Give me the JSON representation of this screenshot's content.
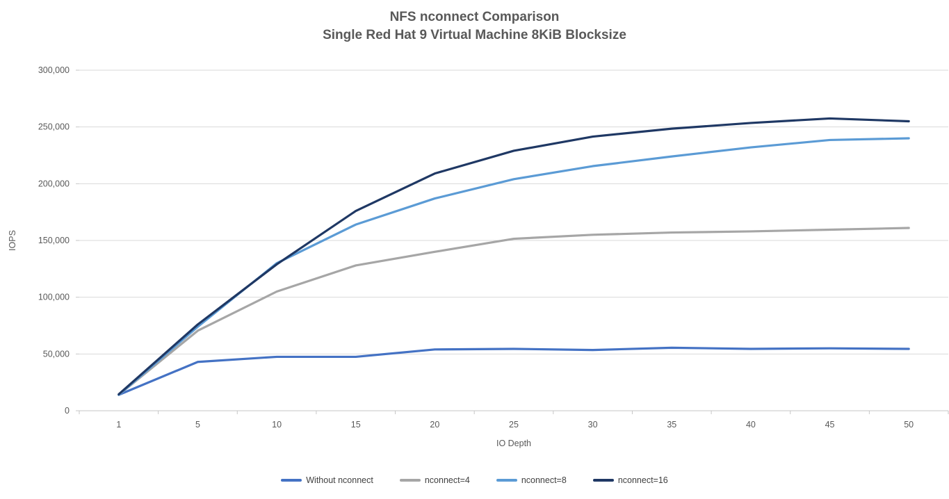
{
  "title": {
    "line1": "NFS nconnect Comparison",
    "line2": "Single Red Hat 9 Virtual Machine 8KiB Blocksize"
  },
  "chart_data": {
    "type": "line",
    "title": "NFS nconnect Comparison — Single Red Hat 9 Virtual Machine 8KiB Blocksize",
    "xlabel": "IO Depth",
    "ylabel": "IOPS",
    "x_is_categorical": true,
    "categories": [
      1,
      5,
      10,
      15,
      20,
      25,
      30,
      35,
      40,
      45,
      50
    ],
    "ylim": [
      0,
      300000
    ],
    "ytick_interval": 50000,
    "yticks": [
      0,
      50000,
      100000,
      150000,
      200000,
      250000,
      300000
    ],
    "ytick_labels": [
      "0",
      "50,000",
      "100,000",
      "150,000",
      "200,000",
      "250,000",
      "300,000"
    ],
    "grid": "horizontal-only",
    "legend_position": "bottom-center",
    "series": [
      {
        "name": "Without nconnect",
        "color": "#4472C4",
        "values": [
          14000,
          43000,
          47500,
          47500,
          54000,
          54500,
          53500,
          55500,
          54500,
          55000,
          54500
        ]
      },
      {
        "name": "nconnect=4",
        "color": "#A6A6A6",
        "values": [
          14000,
          70500,
          105000,
          128000,
          140000,
          151500,
          155000,
          157000,
          158000,
          159500,
          161000
        ]
      },
      {
        "name": "nconnect=8",
        "color": "#5B9BD5",
        "values": [
          14000,
          74000,
          130000,
          164000,
          187000,
          204000,
          215500,
          224000,
          232000,
          238500,
          240000
        ]
      },
      {
        "name": "nconnect=16",
        "color": "#1F3864",
        "values": [
          14500,
          76000,
          129000,
          176000,
          209000,
          229000,
          241500,
          248500,
          253500,
          257500,
          255000
        ]
      }
    ]
  },
  "colors": {
    "grid": "#D9D9D9",
    "axis": "#C6C6C6",
    "tick_text": "#595959",
    "title_text": "#595959"
  }
}
